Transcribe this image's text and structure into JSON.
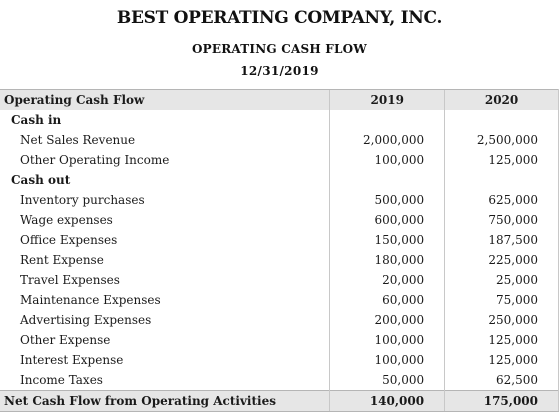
{
  "document": {
    "company": "BEST OPERATING COMPANY, INC.",
    "subtitle": "OPERATING CASH FLOW",
    "date": "12/31/2019"
  },
  "table": {
    "header": {
      "label": "Operating Cash Flow",
      "col1": "2019",
      "col2": "2020"
    },
    "cash_in": {
      "label": "Cash in",
      "items": [
        {
          "label": "Net Sales Revenue",
          "v2019": "2,000,000",
          "v2020": "2,500,000"
        },
        {
          "label": "Other Operating Income",
          "v2019": "100,000",
          "v2020": "125,000"
        }
      ]
    },
    "cash_out": {
      "label": "Cash out",
      "items": [
        {
          "label": "Inventory purchases",
          "v2019": "500,000",
          "v2020": "625,000"
        },
        {
          "label": "Wage expenses",
          "v2019": "600,000",
          "v2020": "750,000"
        },
        {
          "label": "Office Expenses",
          "v2019": "150,000",
          "v2020": "187,500"
        },
        {
          "label": "Rent Expense",
          "v2019": "180,000",
          "v2020": "225,000"
        },
        {
          "label": "Travel Expenses",
          "v2019": "20,000",
          "v2020": "25,000"
        },
        {
          "label": "Maintenance Expenses",
          "v2019": "60,000",
          "v2020": "75,000"
        },
        {
          "label": "Advertising Expenses",
          "v2019": "200,000",
          "v2020": "250,000"
        },
        {
          "label": "Other Expense",
          "v2019": "100,000",
          "v2020": "125,000"
        },
        {
          "label": "Interest Expense",
          "v2019": "100,000",
          "v2020": "125,000"
        },
        {
          "label": "Income Taxes",
          "v2019": "50,000",
          "v2020": "62,500"
        }
      ]
    },
    "total": {
      "label": "Net Cash Flow from Operating Activities",
      "v2019": "140,000",
      "v2020": "175,000"
    }
  }
}
